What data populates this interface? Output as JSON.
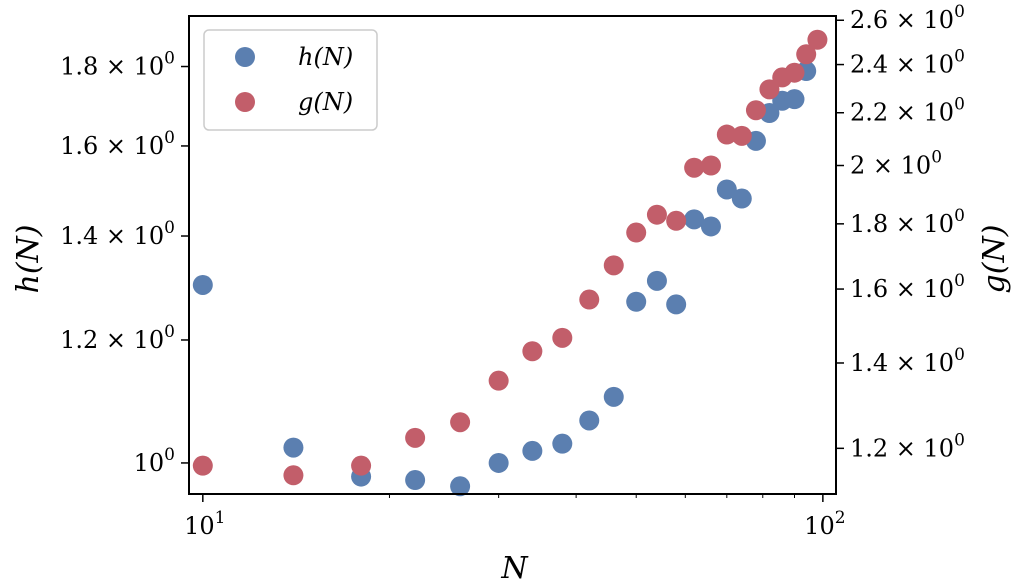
{
  "chart_data": {
    "type": "scatter",
    "xlabel": "N",
    "ylabel_left": "h(N)",
    "ylabel_right": "g(N)",
    "x_scale": "log",
    "y_scale_left": "log",
    "y_scale_right": "log",
    "xlim": [
      9.5,
      105
    ],
    "ylim_left": [
      0.955,
      1.94
    ],
    "ylim_right": [
      1.105,
      2.62
    ],
    "x_ticks": [
      {
        "value": 10,
        "label": "10",
        "exp": "1"
      },
      {
        "value": 100,
        "label": "10",
        "exp": "2"
      }
    ],
    "y_ticks_left": [
      {
        "value": 1.0,
        "label": "10",
        "exp": "0"
      },
      {
        "value": 1.2,
        "label": "1.2 × 10",
        "exp": "0"
      },
      {
        "value": 1.4,
        "label": "1.4 × 10",
        "exp": "0"
      },
      {
        "value": 1.6,
        "label": "1.6 × 10",
        "exp": "0"
      },
      {
        "value": 1.8,
        "label": "1.8 × 10",
        "exp": "0"
      }
    ],
    "y_ticks_right": [
      {
        "value": 1.2,
        "label": "1.2 × 10",
        "exp": "0"
      },
      {
        "value": 1.4,
        "label": "1.4 × 10",
        "exp": "0"
      },
      {
        "value": 1.6,
        "label": "1.6 × 10",
        "exp": "0"
      },
      {
        "value": 1.8,
        "label": "1.8 × 10",
        "exp": "0"
      },
      {
        "value": 2.0,
        "label": "2 × 10",
        "exp": "0"
      },
      {
        "value": 2.2,
        "label": "2.2 × 10",
        "exp": "0"
      },
      {
        "value": 2.4,
        "label": "2.4 × 10",
        "exp": "0"
      },
      {
        "value": 2.6,
        "label": "2.6 × 10",
        "exp": "0"
      }
    ],
    "legend_position": "upper-left",
    "series": [
      {
        "name": "h(N)",
        "axis": "left",
        "color": "#5b7fb0",
        "points": [
          [
            10,
            1.302
          ],
          [
            14,
            1.023
          ],
          [
            18,
            0.98
          ],
          [
            22,
            0.975
          ],
          [
            26,
            0.966
          ],
          [
            30,
            1.0
          ],
          [
            34,
            1.018
          ],
          [
            38,
            1.029
          ],
          [
            42,
            1.065
          ],
          [
            46,
            1.103
          ],
          [
            50,
            1.27
          ],
          [
            54,
            1.31
          ],
          [
            58,
            1.265
          ],
          [
            62,
            1.435
          ],
          [
            66,
            1.42
          ],
          [
            70,
            1.5
          ],
          [
            74,
            1.48
          ],
          [
            78,
            1.612
          ],
          [
            82,
            1.68
          ],
          [
            86,
            1.711
          ],
          [
            90,
            1.715
          ],
          [
            94,
            1.788
          ]
        ]
      },
      {
        "name": "g(N)",
        "axis": "right",
        "color": "#c25e6a",
        "points": [
          [
            10,
            1.163
          ],
          [
            14,
            1.143
          ],
          [
            18,
            1.163
          ],
          [
            22,
            1.223
          ],
          [
            26,
            1.258
          ],
          [
            30,
            1.356
          ],
          [
            34,
            1.43
          ],
          [
            38,
            1.465
          ],
          [
            42,
            1.57
          ],
          [
            46,
            1.67
          ],
          [
            50,
            1.772
          ],
          [
            54,
            1.83
          ],
          [
            58,
            1.81
          ],
          [
            62,
            1.992
          ],
          [
            66,
            2.0
          ],
          [
            70,
            2.115
          ],
          [
            74,
            2.11
          ],
          [
            78,
            2.21
          ],
          [
            82,
            2.295
          ],
          [
            86,
            2.345
          ],
          [
            90,
            2.365
          ],
          [
            94,
            2.445
          ],
          [
            98,
            2.51
          ]
        ]
      }
    ]
  }
}
